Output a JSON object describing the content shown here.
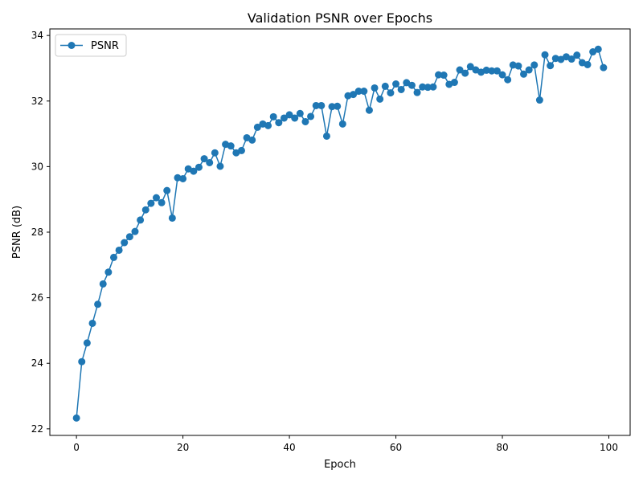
{
  "chart_data": {
    "type": "line",
    "title": "Validation PSNR over Epochs",
    "xlabel": "Epoch",
    "ylabel": "PSNR (dB)",
    "xlim": [
      -5,
      104
    ],
    "ylim": [
      21.8,
      34.2
    ],
    "xticks": [
      0,
      20,
      40,
      60,
      80,
      100
    ],
    "yticks": [
      22,
      24,
      26,
      28,
      30,
      32,
      34
    ],
    "grid": false,
    "legend_position": "upper-left",
    "series": [
      {
        "name": "PSNR",
        "color": "#1f77b4",
        "marker": "circle",
        "x": [
          0,
          1,
          2,
          3,
          4,
          5,
          6,
          7,
          8,
          9,
          10,
          11,
          12,
          13,
          14,
          15,
          16,
          17,
          18,
          19,
          20,
          21,
          22,
          23,
          24,
          25,
          26,
          27,
          28,
          29,
          30,
          31,
          32,
          33,
          34,
          35,
          36,
          37,
          38,
          39,
          40,
          41,
          42,
          43,
          44,
          45,
          46,
          47,
          48,
          49,
          50,
          51,
          52,
          53,
          54,
          55,
          56,
          57,
          58,
          59,
          60,
          61,
          62,
          63,
          64,
          65,
          66,
          67,
          68,
          69,
          70,
          71,
          72,
          73,
          74,
          75,
          76,
          77,
          78,
          79,
          80,
          81,
          82,
          83,
          84,
          85,
          86,
          87,
          88,
          89,
          90,
          91,
          92,
          93,
          94,
          95,
          96,
          97,
          98,
          99
        ],
        "values": [
          22.33,
          24.05,
          24.62,
          25.22,
          25.8,
          26.42,
          26.78,
          27.23,
          27.45,
          27.68,
          27.86,
          28.02,
          28.37,
          28.68,
          28.88,
          29.05,
          28.9,
          29.27,
          28.43,
          29.66,
          29.63,
          29.93,
          29.86,
          29.98,
          30.24,
          30.12,
          30.42,
          30.01,
          30.68,
          30.63,
          30.42,
          30.49,
          30.88,
          30.81,
          31.2,
          31.3,
          31.25,
          31.52,
          31.34,
          31.48,
          31.58,
          31.48,
          31.62,
          31.37,
          31.53,
          31.86,
          31.86,
          30.93,
          31.83,
          31.84,
          31.3,
          32.16,
          32.2,
          32.3,
          32.3,
          31.72,
          32.4,
          32.06,
          32.45,
          32.25,
          32.52,
          32.35,
          32.56,
          32.48,
          32.26,
          32.43,
          32.42,
          32.43,
          32.8,
          32.79,
          32.51,
          32.57,
          32.95,
          32.85,
          33.05,
          32.95,
          32.88,
          32.94,
          32.92,
          32.92,
          32.8,
          32.65,
          33.1,
          33.07,
          32.82,
          32.95,
          33.1,
          32.03,
          33.41,
          33.08,
          33.3,
          33.27,
          33.35,
          33.28,
          33.4,
          33.17,
          33.11,
          33.5,
          33.58,
          33.02
        ]
      }
    ]
  }
}
